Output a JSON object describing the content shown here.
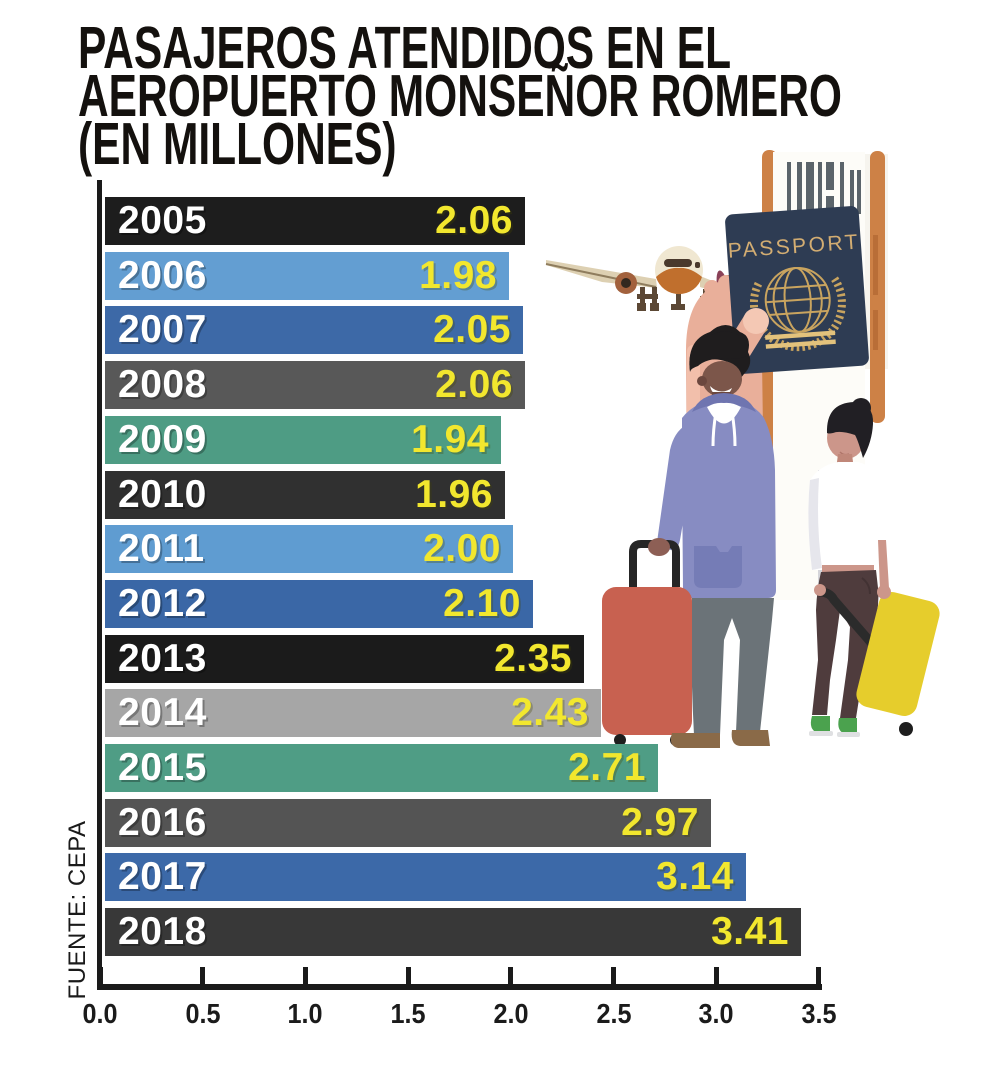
{
  "title": {
    "lines": [
      "PASAJEROS ATENDIDOS EN EL",
      "AEROPUERTO MONSEÑOR ROMERO",
      "(EN MILLONES)"
    ]
  },
  "source_label": "FUENTE: CEPA",
  "chart_data": {
    "type": "bar",
    "orientation": "horizontal",
    "title": "PASAJEROS ATENDIDOS EN EL AEROPUERTO MONSEÑOR ROMERO (EN MILLONES)",
    "categories": [
      "2005",
      "2006",
      "2007",
      "2008",
      "2009",
      "2010",
      "2011",
      "2012",
      "2013",
      "2014",
      "2015",
      "2016",
      "2017",
      "2018"
    ],
    "values": [
      2.06,
      1.98,
      2.05,
      2.06,
      1.94,
      1.96,
      2.0,
      2.1,
      2.35,
      2.43,
      2.71,
      2.97,
      3.14,
      3.41
    ],
    "value_labels": [
      "2.06",
      "1.98",
      "2.05",
      "2.06",
      "1.94",
      "1.96",
      "2.00",
      "2.10",
      "2.35",
      "2.43",
      "2.71",
      "2.97",
      "3.14",
      "3.41"
    ],
    "bar_colors": [
      "#1d1d1d",
      "#639ed2",
      "#3d69a7",
      "#585858",
      "#4e9c84",
      "#303030",
      "#5f9cd1",
      "#3a67a6",
      "#1b1b1b",
      "#a6a6a6",
      "#4f9d85",
      "#545454",
      "#3c69a8",
      "#383838"
    ],
    "xlabel": "",
    "ylabel": "",
    "xlim": [
      0,
      3.5
    ],
    "x_ticks": [
      "0.0",
      "0.5",
      "1.0",
      "1.5",
      "2.0",
      "2.5",
      "3.0",
      "3.5"
    ],
    "grid": false,
    "legend": false,
    "source": "FUENTE: CEPA"
  },
  "colors": {
    "year_text": "#ffffff",
    "value_text": "#f2e72e",
    "axis": "#1a1a1a",
    "background": "#ffffff"
  },
  "illustration": {
    "passport_label": "PASSPORT",
    "items": [
      "airplane",
      "boarding-pass",
      "passport",
      "hand-holding-passport",
      "male-traveler-red-suitcase",
      "female-traveler-yellow-suitcase"
    ]
  }
}
